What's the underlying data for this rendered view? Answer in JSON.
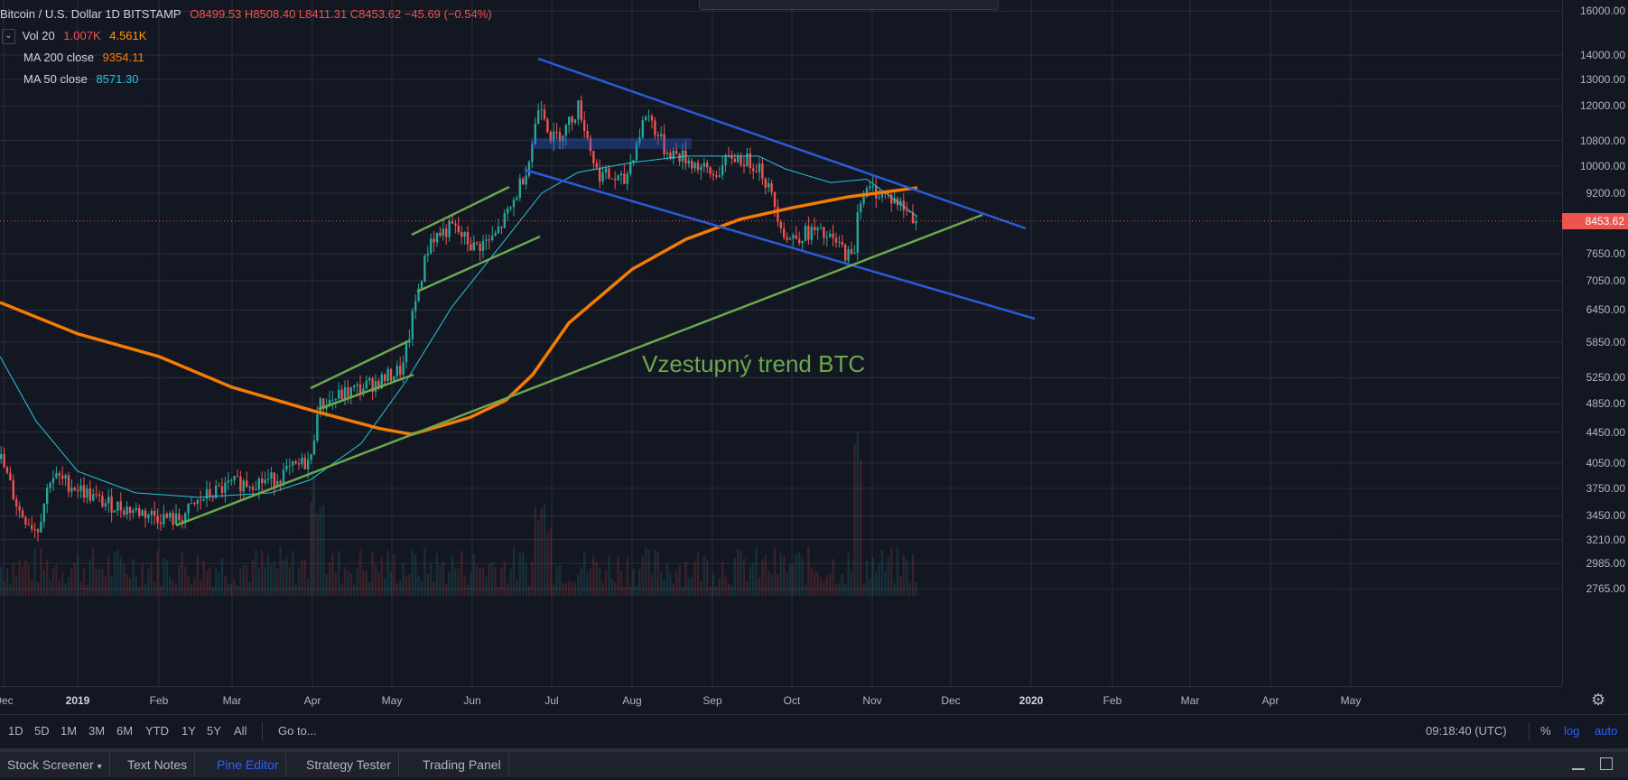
{
  "header": {
    "title": "Bitcoin / U.S. Dollar  1D  BITSTAMP",
    "ohlc": "O8499.53  H8508.40  L8411.31  C8453.62  −45.69 (−0.54%)"
  },
  "indicators": [
    {
      "label": "Vol 20",
      "values": [
        "1.007K",
        "4.561K"
      ],
      "colors": [
        "#ef5350",
        "#ff9800"
      ]
    },
    {
      "label": "MA 200 close",
      "values": [
        "9354.11"
      ],
      "colors": [
        "#f57c00"
      ]
    },
    {
      "label": "MA 50 close",
      "values": [
        "8571.30"
      ],
      "colors": [
        "#26c6da"
      ]
    }
  ],
  "collapse_icon": "chevron-down-icon",
  "price_axis": {
    "ticks": [
      "16000.00",
      "14000.00",
      "13000.00",
      "12000.00",
      "10800.00",
      "10000.00",
      "9200.00",
      "7650.00",
      "7050.00",
      "6450.00",
      "5850.00",
      "5250.00",
      "4850.00",
      "4450.00",
      "4050.00",
      "3750.00",
      "3450.00",
      "3210.00",
      "2985.00",
      "2765.00"
    ],
    "tick_values": [
      16000,
      14000,
      13000,
      12000,
      10800,
      10000,
      9200,
      7650,
      7050,
      6450,
      5850,
      5250,
      4850,
      4450,
      4050,
      3750,
      3450,
      3210,
      2985,
      2765
    ],
    "current_price": "8453.62",
    "current_value": 8453.62
  },
  "time_axis": {
    "ticks": [
      "Dec",
      "2019",
      "Feb",
      "Mar",
      "Apr",
      "May",
      "Jun",
      "Jul",
      "Aug",
      "Sep",
      "Oct",
      "Nov",
      "Dec",
      "2020",
      "Feb",
      "Mar",
      "Apr",
      "May"
    ],
    "bold": [
      "2019",
      "2020"
    ]
  },
  "annotation": {
    "text": "Vzestupný trend BTC",
    "color": "#6aa84f"
  },
  "colors": {
    "up": "#26a69a",
    "down": "#ef5350",
    "ma200": "#f57c00",
    "ma50": "#26c6da",
    "trend_blue": "#2a5bd7",
    "trend_green": "#6aa84f",
    "background": "#131722"
  },
  "range_bar": {
    "buttons": [
      "1D",
      "5D",
      "1M",
      "3M",
      "6M",
      "YTD",
      "1Y",
      "5Y",
      "All"
    ],
    "goto": "Go to...",
    "clock": "09:18:40 (UTC)",
    "percent": "%",
    "log": "log",
    "auto": "auto"
  },
  "bottom_tabs": [
    "Stock Screener",
    "Text Notes",
    "Pine Editor",
    "Strategy Tester",
    "Trading Panel"
  ],
  "active_tab": "Pine Editor",
  "settings_icon": "gear-icon",
  "window_icons": [
    "minimize-icon",
    "maximize-icon"
  ]
}
